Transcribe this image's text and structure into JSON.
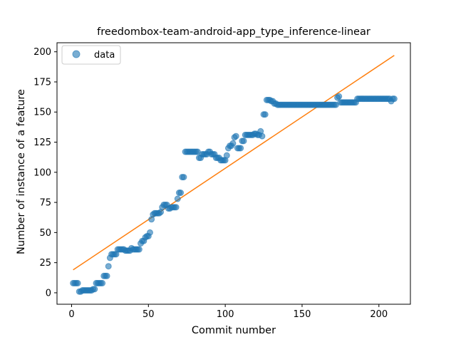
{
  "chart_data": {
    "type": "scatter",
    "title": "freedombox-team-android-app_type_inference-linear",
    "xlabel": "Commit number",
    "ylabel": "Number of instance of a feature",
    "xlim": [
      -9.5,
      220.5
    ],
    "ylim": [
      -9.5,
      207.5
    ],
    "xticks": [
      0,
      50,
      100,
      150,
      200
    ],
    "yticks": [
      0,
      25,
      50,
      75,
      100,
      125,
      150,
      175,
      200
    ],
    "grid": false,
    "legend_position": "top-left",
    "colors": {
      "data": "#1f77b4",
      "fit": "#ff7f0e"
    },
    "series": [
      {
        "name": "data",
        "kind": "scatter",
        "points": [
          [
            1,
            8
          ],
          [
            2,
            8
          ],
          [
            3,
            8
          ],
          [
            4,
            8
          ],
          [
            5,
            1
          ],
          [
            6,
            1
          ],
          [
            7,
            2
          ],
          [
            8,
            2
          ],
          [
            9,
            2
          ],
          [
            10,
            2
          ],
          [
            11,
            2
          ],
          [
            12,
            2
          ],
          [
            13,
            2
          ],
          [
            14,
            3
          ],
          [
            15,
            3
          ],
          [
            16,
            8
          ],
          [
            17,
            8
          ],
          [
            18,
            8
          ],
          [
            19,
            8
          ],
          [
            20,
            8
          ],
          [
            21,
            14
          ],
          [
            22,
            14
          ],
          [
            23,
            14
          ],
          [
            24,
            22
          ],
          [
            25,
            29
          ],
          [
            26,
            32
          ],
          [
            27,
            32
          ],
          [
            28,
            32
          ],
          [
            29,
            32
          ],
          [
            30,
            36
          ],
          [
            31,
            36
          ],
          [
            32,
            36
          ],
          [
            33,
            36
          ],
          [
            34,
            36
          ],
          [
            35,
            35
          ],
          [
            36,
            35
          ],
          [
            37,
            35
          ],
          [
            38,
            35
          ],
          [
            39,
            37
          ],
          [
            40,
            36
          ],
          [
            41,
            36
          ],
          [
            42,
            36
          ],
          [
            43,
            36
          ],
          [
            44,
            36
          ],
          [
            45,
            41
          ],
          [
            46,
            43
          ],
          [
            47,
            43
          ],
          [
            48,
            46
          ],
          [
            49,
            47
          ],
          [
            50,
            47
          ],
          [
            51,
            50
          ],
          [
            52,
            61
          ],
          [
            53,
            65
          ],
          [
            54,
            66
          ],
          [
            55,
            66
          ],
          [
            56,
            66
          ],
          [
            57,
            66
          ],
          [
            58,
            67
          ],
          [
            59,
            71
          ],
          [
            60,
            73
          ],
          [
            61,
            73
          ],
          [
            62,
            73
          ],
          [
            63,
            70
          ],
          [
            64,
            70
          ],
          [
            65,
            71
          ],
          [
            66,
            71
          ],
          [
            67,
            71
          ],
          [
            68,
            71
          ],
          [
            69,
            78
          ],
          [
            70,
            83
          ],
          [
            71,
            83
          ],
          [
            72,
            96
          ],
          [
            73,
            96
          ],
          [
            74,
            117
          ],
          [
            75,
            117
          ],
          [
            76,
            117
          ],
          [
            77,
            117
          ],
          [
            78,
            117
          ],
          [
            79,
            117
          ],
          [
            80,
            117
          ],
          [
            81,
            117
          ],
          [
            82,
            117
          ],
          [
            83,
            112
          ],
          [
            84,
            112
          ],
          [
            85,
            115
          ],
          [
            86,
            115
          ],
          [
            87,
            115
          ],
          [
            88,
            115
          ],
          [
            89,
            117
          ],
          [
            90,
            117
          ],
          [
            91,
            115
          ],
          [
            92,
            115
          ],
          [
            93,
            115
          ],
          [
            94,
            112
          ],
          [
            95,
            112
          ],
          [
            96,
            112
          ],
          [
            97,
            110
          ],
          [
            98,
            110
          ],
          [
            99,
            110
          ],
          [
            100,
            110
          ],
          [
            101,
            114
          ],
          [
            102,
            120
          ],
          [
            103,
            122
          ],
          [
            104,
            122
          ],
          [
            105,
            124
          ],
          [
            106,
            129
          ],
          [
            107,
            130
          ],
          [
            108,
            120
          ],
          [
            109,
            120
          ],
          [
            110,
            120
          ],
          [
            111,
            126
          ],
          [
            112,
            126
          ],
          [
            113,
            131
          ],
          [
            114,
            131
          ],
          [
            115,
            131
          ],
          [
            116,
            131
          ],
          [
            117,
            131
          ],
          [
            118,
            131
          ],
          [
            119,
            132
          ],
          [
            120,
            132
          ],
          [
            121,
            131
          ],
          [
            122,
            131
          ],
          [
            123,
            134
          ],
          [
            124,
            130
          ],
          [
            125,
            148
          ],
          [
            126,
            148
          ],
          [
            127,
            160
          ],
          [
            128,
            160
          ],
          [
            129,
            160
          ],
          [
            130,
            159
          ],
          [
            131,
            159
          ],
          [
            132,
            157
          ],
          [
            133,
            157
          ],
          [
            134,
            156
          ],
          [
            135,
            156
          ],
          [
            136,
            156
          ],
          [
            137,
            156
          ],
          [
            138,
            156
          ],
          [
            139,
            156
          ],
          [
            140,
            156
          ],
          [
            141,
            156
          ],
          [
            142,
            156
          ],
          [
            143,
            156
          ],
          [
            144,
            156
          ],
          [
            145,
            156
          ],
          [
            146,
            156
          ],
          [
            147,
            156
          ],
          [
            148,
            156
          ],
          [
            149,
            156
          ],
          [
            150,
            156
          ],
          [
            151,
            156
          ],
          [
            152,
            156
          ],
          [
            153,
            156
          ],
          [
            154,
            156
          ],
          [
            155,
            156
          ],
          [
            156,
            156
          ],
          [
            157,
            156
          ],
          [
            158,
            156
          ],
          [
            159,
            156
          ],
          [
            160,
            156
          ],
          [
            161,
            156
          ],
          [
            162,
            156
          ],
          [
            163,
            156
          ],
          [
            164,
            156
          ],
          [
            165,
            156
          ],
          [
            166,
            156
          ],
          [
            167,
            156
          ],
          [
            168,
            156
          ],
          [
            169,
            156
          ],
          [
            170,
            156
          ],
          [
            171,
            156
          ],
          [
            172,
            156
          ],
          [
            173,
            162
          ],
          [
            174,
            163
          ],
          [
            175,
            158
          ],
          [
            176,
            158
          ],
          [
            177,
            158
          ],
          [
            178,
            158
          ],
          [
            179,
            158
          ],
          [
            180,
            158
          ],
          [
            181,
            158
          ],
          [
            182,
            158
          ],
          [
            183,
            158
          ],
          [
            184,
            158
          ],
          [
            185,
            158
          ],
          [
            186,
            161
          ],
          [
            187,
            161
          ],
          [
            188,
            161
          ],
          [
            189,
            161
          ],
          [
            190,
            161
          ],
          [
            191,
            161
          ],
          [
            192,
            161
          ],
          [
            193,
            161
          ],
          [
            194,
            161
          ],
          [
            195,
            161
          ],
          [
            196,
            161
          ],
          [
            197,
            161
          ],
          [
            198,
            161
          ],
          [
            199,
            161
          ],
          [
            200,
            161
          ],
          [
            201,
            161
          ],
          [
            202,
            161
          ],
          [
            203,
            161
          ],
          [
            204,
            161
          ],
          [
            205,
            161
          ],
          [
            206,
            161
          ],
          [
            207,
            161
          ],
          [
            208,
            159
          ],
          [
            209,
            161
          ],
          [
            210,
            161
          ]
        ]
      },
      {
        "name": "",
        "kind": "line",
        "points": [
          [
            1,
            19
          ],
          [
            210,
            197
          ]
        ]
      }
    ]
  }
}
